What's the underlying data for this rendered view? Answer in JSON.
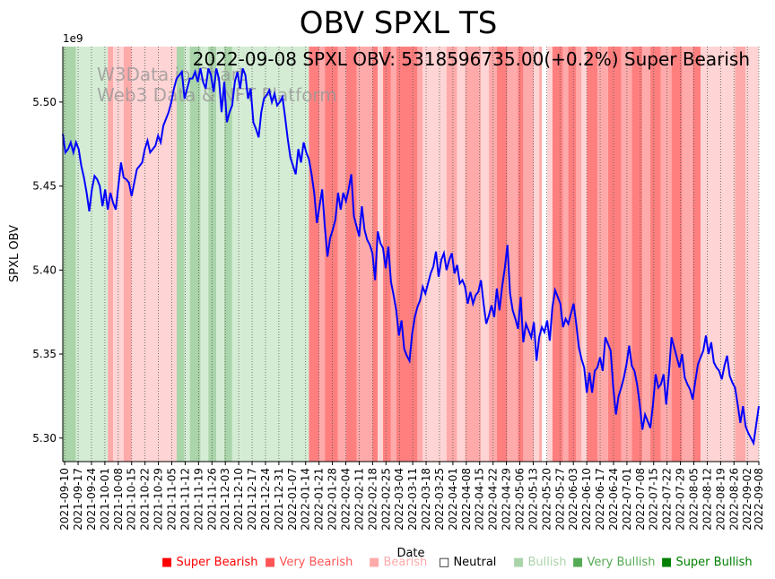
{
  "chart_data": {
    "type": "line",
    "title": "OBV SPXL TS",
    "subtitle": "2022-09-08 SPXL OBV: 5318596735.00(+0.2%) Super Bearish",
    "watermark": [
      "W3Data.io Chart",
      "Web3 Data & NFT Platform"
    ],
    "xlabel": "Date",
    "ylabel": "SPXL OBV",
    "y_offset_label": "1e9",
    "ylim": [
      5.286,
      5.533
    ],
    "y_ticks": [
      "5.30",
      "5.35",
      "5.40",
      "5.45",
      "5.50"
    ],
    "y_tick_values": [
      5.3,
      5.35,
      5.4,
      5.45,
      5.5
    ],
    "x_start": "2021-09-09",
    "x_end": "2022-09-08",
    "x_ticks": [
      "2021-09-10",
      "2021-09-17",
      "2021-09-24",
      "2021-10-01",
      "2021-10-08",
      "2021-10-15",
      "2021-10-22",
      "2021-10-29",
      "2021-11-05",
      "2021-11-12",
      "2021-11-19",
      "2021-11-26",
      "2021-12-03",
      "2021-12-10",
      "2021-12-17",
      "2021-12-24",
      "2021-12-31",
      "2022-01-07",
      "2022-01-14",
      "2022-01-21",
      "2022-01-28",
      "2022-02-04",
      "2022-02-11",
      "2022-02-18",
      "2022-02-25",
      "2022-03-04",
      "2022-03-11",
      "2022-03-18",
      "2022-03-25",
      "2022-04-01",
      "2022-04-08",
      "2022-04-15",
      "2022-04-22",
      "2022-04-29",
      "2022-05-06",
      "2022-05-13",
      "2022-05-20",
      "2022-05-27",
      "2022-06-03",
      "2022-06-10",
      "2022-06-17",
      "2022-06-24",
      "2022-07-01",
      "2022-07-08",
      "2022-07-15",
      "2022-07-22",
      "2022-07-29",
      "2022-08-05",
      "2022-08-12",
      "2022-08-19",
      "2022-08-26",
      "2022-09-02",
      "2022-09-08"
    ],
    "series": [
      {
        "name": "SPXL OBV",
        "color": "#0000ff",
        "values": [
          5.481,
          5.47,
          5.472,
          5.476,
          5.47,
          5.476,
          5.472,
          5.462,
          5.455,
          5.446,
          5.435,
          5.448,
          5.456,
          5.454,
          5.45,
          5.438,
          5.448,
          5.436,
          5.446,
          5.44,
          5.436,
          5.45,
          5.464,
          5.455,
          5.454,
          5.452,
          5.444,
          5.452,
          5.46,
          5.462,
          5.464,
          5.472,
          5.477,
          5.47,
          5.472,
          5.474,
          5.48,
          5.476,
          5.486,
          5.49,
          5.494,
          5.5,
          5.508,
          5.514,
          5.516,
          5.518,
          5.502,
          5.508,
          5.514,
          5.514,
          5.518,
          5.512,
          5.52,
          5.512,
          5.508,
          5.52,
          5.516,
          5.506,
          5.52,
          5.514,
          5.494,
          5.512,
          5.488,
          5.494,
          5.498,
          5.512,
          5.518,
          5.508,
          5.52,
          5.516,
          5.502,
          5.508,
          5.488,
          5.484,
          5.479,
          5.494,
          5.502,
          5.504,
          5.507,
          5.5,
          5.505,
          5.498,
          5.5,
          5.503,
          5.491,
          5.478,
          5.467,
          5.462,
          5.457,
          5.472,
          5.464,
          5.476,
          5.47,
          5.466,
          5.457,
          5.446,
          5.428,
          5.438,
          5.448,
          5.426,
          5.408,
          5.419,
          5.424,
          5.43,
          5.446,
          5.436,
          5.446,
          5.441,
          5.448,
          5.457,
          5.432,
          5.426,
          5.42,
          5.438,
          5.424,
          5.418,
          5.415,
          5.41,
          5.394,
          5.423,
          5.416,
          5.413,
          5.401,
          5.414,
          5.393,
          5.385,
          5.376,
          5.361,
          5.37,
          5.353,
          5.349,
          5.346,
          5.362,
          5.372,
          5.378,
          5.382,
          5.39,
          5.386,
          5.392,
          5.398,
          5.402,
          5.411,
          5.396,
          5.406,
          5.41,
          5.4,
          5.406,
          5.41,
          5.398,
          5.403,
          5.392,
          5.394,
          5.39,
          5.38,
          5.387,
          5.38,
          5.385,
          5.387,
          5.394,
          5.38,
          5.368,
          5.373,
          5.379,
          5.372,
          5.389,
          5.376,
          5.39,
          5.401,
          5.415,
          5.386,
          5.376,
          5.371,
          5.365,
          5.384,
          5.357,
          5.368,
          5.364,
          5.36,
          5.369,
          5.346,
          5.36,
          5.366,
          5.363,
          5.37,
          5.358,
          5.378,
          5.388,
          5.384,
          5.38,
          5.366,
          5.371,
          5.368,
          5.374,
          5.38,
          5.368,
          5.354,
          5.347,
          5.342,
          5.327,
          5.339,
          5.327,
          5.34,
          5.342,
          5.348,
          5.34,
          5.36,
          5.356,
          5.352,
          5.33,
          5.314,
          5.325,
          5.33,
          5.336,
          5.344,
          5.355,
          5.343,
          5.34,
          5.332,
          5.32,
          5.305,
          5.314,
          5.31,
          5.306,
          5.32,
          5.338,
          5.33,
          5.332,
          5.338,
          5.32,
          5.338,
          5.36,
          5.354,
          5.348,
          5.342,
          5.35,
          5.336,
          5.332,
          5.329,
          5.323,
          5.334,
          5.344,
          5.348,
          5.352,
          5.361,
          5.35,
          5.357,
          5.345,
          5.342,
          5.34,
          5.335,
          5.343,
          5.349,
          5.337,
          5.333,
          5.33,
          5.32,
          5.309,
          5.319,
          5.307,
          5.303,
          5.3,
          5.297,
          5.308,
          5.319
        ]
      }
    ],
    "bands": [
      [
        0,
        5,
        "very_bullish"
      ],
      [
        5,
        17,
        "bullish"
      ],
      [
        17,
        19,
        "very_bearish"
      ],
      [
        19,
        23,
        "bearish"
      ],
      [
        23,
        26,
        "very_bearish"
      ],
      [
        26,
        43,
        "bearish"
      ],
      [
        43,
        46,
        "very_bullish"
      ],
      [
        46,
        48,
        "bullish"
      ],
      [
        48,
        52,
        "very_bullish"
      ],
      [
        52,
        55,
        "bullish"
      ],
      [
        55,
        58,
        "very_bullish"
      ],
      [
        58,
        61,
        "bullish"
      ],
      [
        61,
        64,
        "very_bullish"
      ],
      [
        64,
        67,
        "bullish"
      ],
      [
        67,
        93,
        "bullish"
      ],
      [
        93,
        97,
        "super_bearish"
      ],
      [
        97,
        99,
        "very_bearish"
      ],
      [
        99,
        104,
        "super_bearish"
      ],
      [
        104,
        107,
        "very_bearish"
      ],
      [
        107,
        111,
        "super_bearish"
      ],
      [
        111,
        117,
        "very_bearish"
      ],
      [
        117,
        119,
        "super_bearish"
      ],
      [
        119,
        121,
        "bearish"
      ],
      [
        121,
        124,
        "super_bearish"
      ],
      [
        124,
        126,
        "very_bearish"
      ],
      [
        126,
        134,
        "super_bearish"
      ],
      [
        134,
        136,
        "very_bearish"
      ],
      [
        136,
        145,
        "bearish"
      ],
      [
        145,
        149,
        "very_bearish"
      ],
      [
        149,
        152,
        "bearish"
      ],
      [
        152,
        158,
        "very_bearish"
      ],
      [
        158,
        161,
        "bearish"
      ],
      [
        161,
        164,
        "very_bearish"
      ],
      [
        164,
        168,
        "super_bearish"
      ],
      [
        168,
        172,
        "very_bearish"
      ],
      [
        172,
        174,
        "super_bearish"
      ],
      [
        174,
        178,
        "very_bearish"
      ],
      [
        178,
        180,
        "bearish"
      ],
      [
        180,
        181,
        "very_bearish"
      ],
      [
        181,
        183,
        "neutral"
      ],
      [
        183,
        185,
        "bearish"
      ],
      [
        185,
        189,
        "super_bearish"
      ],
      [
        189,
        191,
        "very_bearish"
      ],
      [
        191,
        194,
        "super_bearish"
      ],
      [
        194,
        196,
        "very_bearish"
      ],
      [
        196,
        198,
        "bearish"
      ],
      [
        198,
        202,
        "super_bearish"
      ],
      [
        202,
        206,
        "very_bearish"
      ],
      [
        206,
        211,
        "super_bearish"
      ],
      [
        211,
        215,
        "very_bearish"
      ],
      [
        215,
        219,
        "super_bearish"
      ],
      [
        219,
        222,
        "very_bearish"
      ],
      [
        222,
        226,
        "super_bearish"
      ],
      [
        226,
        230,
        "very_bearish"
      ],
      [
        230,
        234,
        "super_bearish"
      ],
      [
        234,
        238,
        "very_bearish"
      ],
      [
        238,
        241,
        "super_bearish"
      ],
      [
        241,
        250,
        "bearish"
      ],
      [
        250,
        254,
        "bearish"
      ],
      [
        254,
        258,
        "very_bearish"
      ],
      [
        258,
        263,
        "bearish"
      ],
      [
        263,
        265,
        "very_bearish"
      ],
      [
        265,
        268,
        "super_bearish"
      ],
      [
        268,
        271,
        "super_bearish"
      ]
    ],
    "legend_entries": [
      {
        "key": "super_bearish",
        "label": "Super Bearish",
        "color": "#ff0000"
      },
      {
        "key": "very_bearish",
        "label": "Very Bearish",
        "color": "#ff5555"
      },
      {
        "key": "bearish",
        "label": "Bearish",
        "color": "#ffaaaa"
      },
      {
        "key": "neutral",
        "label": "Neutral",
        "color": "#000000"
      },
      {
        "key": "bullish",
        "label": "Bullish",
        "color": "#aad4aa"
      },
      {
        "key": "very_bullish",
        "label": "Very Bullish",
        "color": "#55aa55"
      },
      {
        "key": "super_bullish",
        "label": "Super Bullish",
        "color": "#008000"
      }
    ],
    "band_colors": {
      "super_bearish": "#ff7f7f",
      "very_bearish": "#ffaaaa",
      "bearish": "#ffd4d4",
      "neutral": "#ffffff",
      "bullish": "#d4ecd4",
      "very_bullish": "#aad4aa",
      "super_bullish": "#7fbf7f"
    },
    "grid": true,
    "legend_position": "bottom"
  }
}
